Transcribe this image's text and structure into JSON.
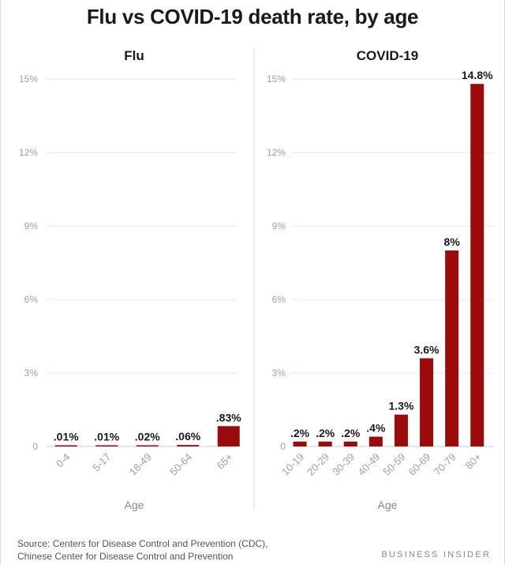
{
  "title": "Flu vs COVID-19 death rate, by age",
  "footer": {
    "source_label": "Source:",
    "source_line1": "Centers for Disease Control and Prevention (CDC),",
    "source_line2": "Chinese Center for Disease Control and Prevention",
    "brand": "BUSINESS INSIDER"
  },
  "colors": {
    "bar": "#9b0b0b",
    "grid": "#e6e6e6",
    "tick_text": "#a0a0a0",
    "label_text": "#1a1a1a"
  },
  "chart_data": [
    {
      "type": "bar",
      "title": "Flu",
      "xlabel": "Age",
      "ylabel": "",
      "ylim": [
        0,
        15
      ],
      "yticks": [
        0,
        3,
        6,
        9,
        12,
        15
      ],
      "ytick_labels": [
        "0",
        "3%",
        "6%",
        "9%",
        "12%",
        "15%"
      ],
      "categories": [
        "0-4",
        "5-17",
        "18-49",
        "50-64",
        "65+"
      ],
      "values": [
        0.01,
        0.01,
        0.02,
        0.06,
        0.83
      ],
      "data_labels": [
        ".01%",
        ".01%",
        ".02%",
        ".06%",
        ".83%"
      ],
      "grid": true
    },
    {
      "type": "bar",
      "title": "COVID-19",
      "xlabel": "Age",
      "ylabel": "",
      "ylim": [
        0,
        15
      ],
      "yticks": [
        0,
        3,
        6,
        9,
        12,
        15
      ],
      "ytick_labels": [
        "0",
        "3%",
        "6%",
        "9%",
        "12%",
        "15%"
      ],
      "categories": [
        "10-19",
        "20-29",
        "30-39",
        "40-49",
        "50-59",
        "60-69",
        "70-79",
        "80+"
      ],
      "values": [
        0.2,
        0.2,
        0.2,
        0.4,
        1.3,
        3.6,
        8,
        14.8
      ],
      "data_labels": [
        ".2%",
        ".2%",
        ".2%",
        ".4%",
        "1.3%",
        "3.6%",
        "8%",
        "14.8%"
      ],
      "grid": true
    }
  ]
}
